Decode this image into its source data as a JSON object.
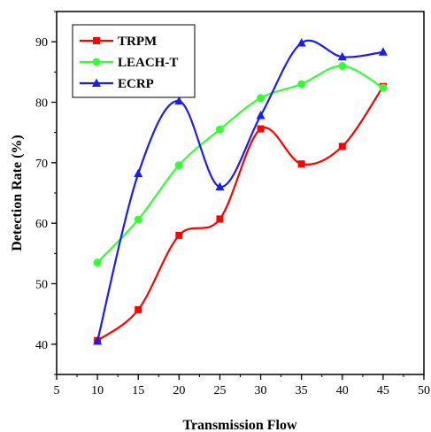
{
  "chart_data": {
    "type": "line",
    "title": "",
    "xlabel": "Transmission Flow",
    "ylabel": "Detection Rate (%)",
    "xlim": [
      5,
      50
    ],
    "ylim": [
      35,
      95
    ],
    "x_ticks": [
      5,
      10,
      15,
      20,
      25,
      30,
      35,
      40,
      45,
      50
    ],
    "y_ticks": [
      40,
      50,
      60,
      70,
      80,
      90
    ],
    "legend_position": "top-left",
    "grid": false,
    "series": [
      {
        "name": "TRPM",
        "color": "#ff0000",
        "marker": "square",
        "x": [
          10,
          15,
          20,
          25,
          30,
          35,
          40,
          45
        ],
        "y": [
          40.6,
          45.7,
          58.0,
          60.7,
          75.6,
          69.8,
          72.7,
          82.6
        ]
      },
      {
        "name": "LEACH-T",
        "color": "#33ff33",
        "marker": "circle",
        "x": [
          10,
          15,
          20,
          25,
          30,
          35,
          40,
          45
        ],
        "y": [
          53.5,
          60.6,
          69.6,
          75.5,
          80.7,
          83.0,
          86.0,
          82.4
        ]
      },
      {
        "name": "ECRP",
        "color": "#1a1aff",
        "marker": "triangle",
        "x": [
          10,
          15,
          20,
          25,
          30,
          35,
          40,
          45
        ],
        "y": [
          40.5,
          68.2,
          80.2,
          66.0,
          77.8,
          89.8,
          87.5,
          88.3
        ]
      }
    ]
  }
}
